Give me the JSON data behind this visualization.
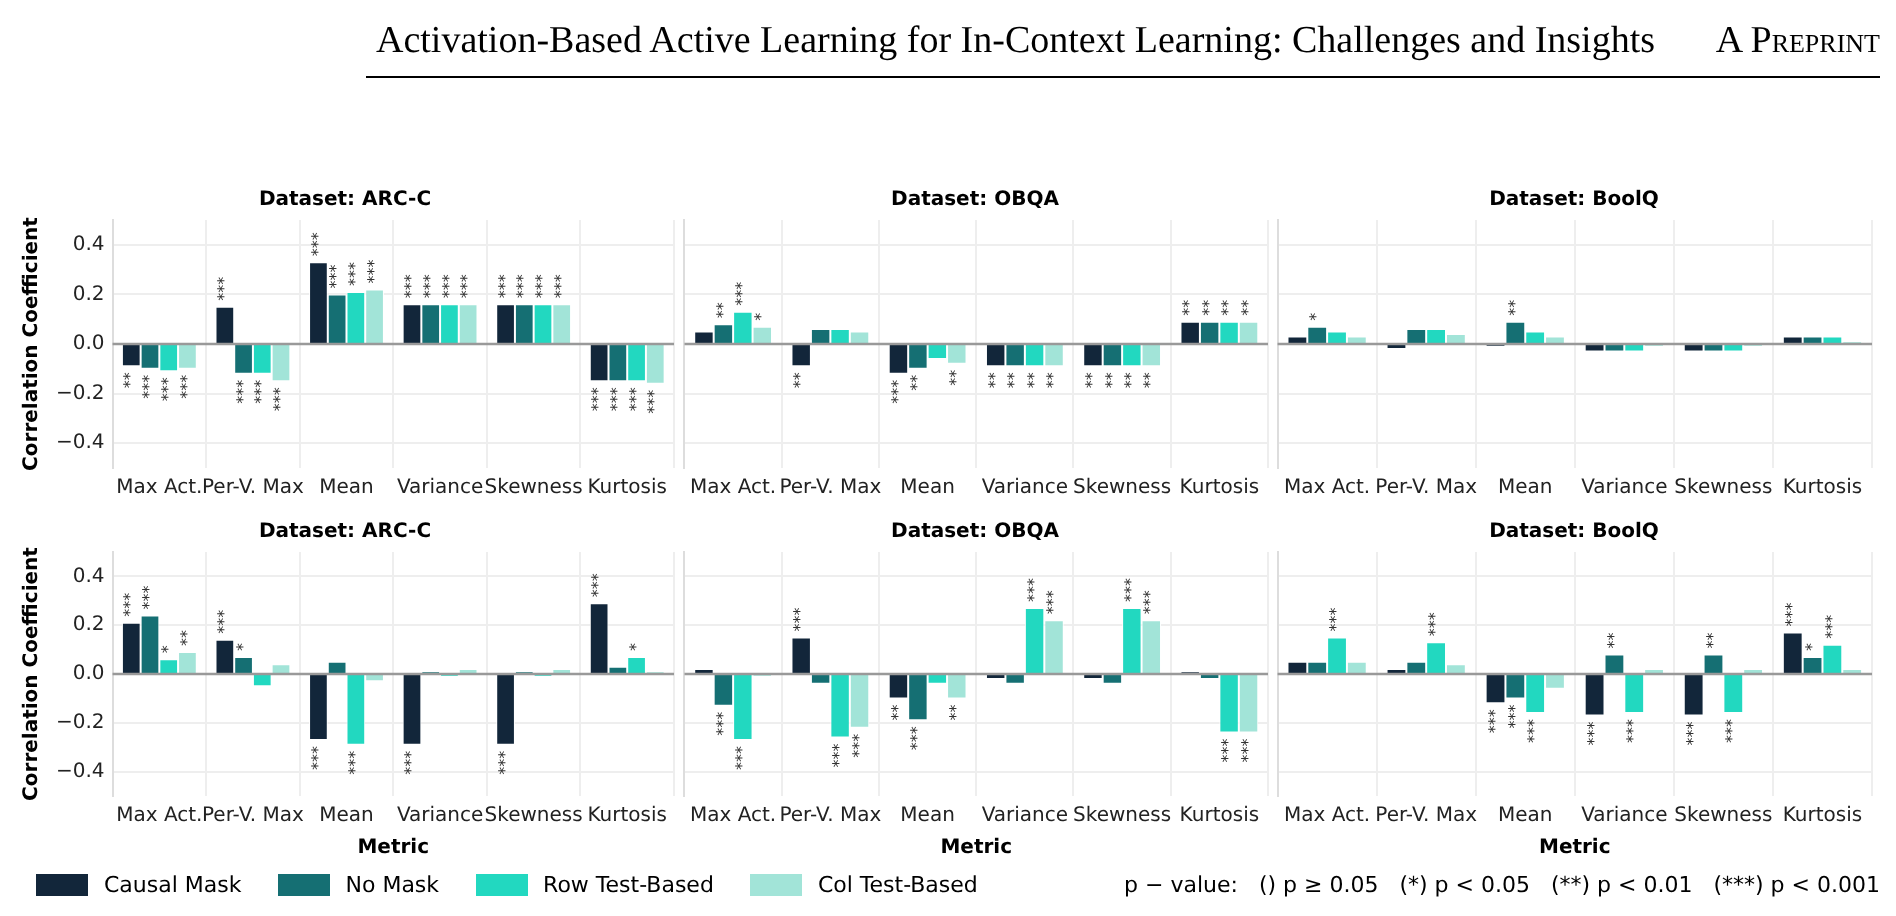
{
  "chart_data": [
    {
      "type": "bar",
      "title": "Dataset: ARC-C",
      "ylabel": "Correlation Coefficient",
      "categories": [
        "Max Act.",
        "Per-V. Max",
        "Mean",
        "Variance",
        "Skewness",
        "Kurtosis"
      ],
      "ylim": [
        -0.5,
        0.5
      ],
      "yticks": [
        -0.4,
        -0.2,
        {
          "value": 0,
          "label": "0.0"
        },
        0.2,
        0.4
      ],
      "grid": true,
      "legend": "bottom",
      "tick_labels": "xy",
      "ref_lines": [
        {
          "axis": "y",
          "value": 0,
          "color": "#999999"
        }
      ],
      "annotations": [
        "Activation-Based Active Learning for In-Context Learning: Challenges and Insights",
        "A Preprint"
      ],
      "series": [
        {
          "name": "Causal Mask",
          "color": "#12263a",
          "values": [
            -0.09,
            0.15,
            0.33,
            0.16,
            0.16,
            -0.15
          ],
          "value_labels": [
            "**",
            "***",
            "***",
            "***",
            "***",
            "***"
          ]
        },
        {
          "name": "No Mask",
          "color": "#156f73",
          "values": [
            -0.1,
            -0.12,
            0.2,
            0.16,
            0.16,
            -0.15
          ],
          "value_labels": [
            "***",
            "***",
            "***",
            "***",
            "***",
            "***"
          ]
        },
        {
          "name": "Row Test-Based",
          "color": "#22d8c0",
          "values": [
            -0.11,
            -0.12,
            0.21,
            0.16,
            0.16,
            -0.15
          ],
          "value_labels": [
            "***",
            "***",
            "***",
            "***",
            "***",
            "***"
          ]
        },
        {
          "name": "Col Test-Based",
          "color": "#a2e4d8",
          "values": [
            -0.1,
            -0.15,
            0.22,
            0.16,
            0.16,
            -0.16
          ],
          "value_labels": [
            "***",
            "***",
            "***",
            "***",
            "***",
            "***"
          ]
        }
      ]
    },
    {
      "type": "bar",
      "title": "Dataset: OBQA",
      "categories": [
        "Max Act.",
        "Per-V. Max",
        "Mean",
        "Variance",
        "Skewness",
        "Kurtosis"
      ],
      "ylim": [
        -0.5,
        0.5
      ],
      "yticks": [
        -0.4,
        -0.2,
        0,
        0.2,
        0.4
      ],
      "grid": true,
      "tick_labels": "x",
      "ref_lines": [
        {
          "axis": "y",
          "value": 0,
          "color": "#999999"
        }
      ],
      "series": [
        {
          "color": "#12263a",
          "values": [
            0.05,
            -0.09,
            -0.12,
            -0.09,
            -0.09,
            0.09
          ],
          "value_labels": [
            null,
            "**",
            "***",
            "**",
            "**",
            "**"
          ]
        },
        {
          "color": "#156f73",
          "values": [
            0.08,
            0.06,
            -0.1,
            -0.09,
            -0.09,
            0.09
          ],
          "value_labels": [
            "**",
            null,
            "**",
            "**",
            "**",
            "**"
          ]
        },
        {
          "color": "#22d8c0",
          "values": [
            0.13,
            0.06,
            -0.06,
            -0.09,
            -0.09,
            0.09
          ],
          "value_labels": [
            "***",
            null,
            null,
            "**",
            "**",
            "**"
          ]
        },
        {
          "color": "#a2e4d8",
          "values": [
            0.07,
            0.05,
            -0.08,
            -0.09,
            -0.09,
            0.09
          ],
          "value_labels": [
            "*",
            null,
            "**",
            "**",
            "**",
            "**"
          ]
        }
      ]
    },
    {
      "type": "bar",
      "title": "Dataset: BoolQ",
      "categories": [
        "Max Act.",
        "Per-V. Max",
        "Mean",
        "Variance",
        "Skewness",
        "Kurtosis"
      ],
      "ylim": [
        -0.5,
        0.5
      ],
      "yticks": [
        -0.4,
        -0.2,
        0,
        0.2,
        0.4
      ],
      "grid": true,
      "tick_labels": "x",
      "ref_lines": [
        {
          "axis": "y",
          "value": 0,
          "color": "#999999"
        }
      ],
      "series": [
        {
          "color": "#12263a",
          "values": [
            0.03,
            -0.02,
            -0.01,
            -0.03,
            -0.03,
            0.03
          ],
          "value_labels": [
            null,
            null,
            null,
            null,
            null,
            null
          ]
        },
        {
          "color": "#156f73",
          "values": [
            0.07,
            0.06,
            0.09,
            -0.03,
            -0.03,
            0.03
          ],
          "value_labels": [
            "*",
            null,
            "**",
            null,
            null,
            null
          ]
        },
        {
          "color": "#22d8c0",
          "values": [
            0.05,
            0.06,
            0.05,
            -0.03,
            -0.03,
            0.03
          ],
          "value_labels": [
            null,
            null,
            null,
            null,
            null,
            null
          ]
        },
        {
          "color": "#a2e4d8",
          "values": [
            0.03,
            0.04,
            0.03,
            -0.01,
            -0.01,
            0.01
          ],
          "value_labels": [
            null,
            null,
            null,
            null,
            null,
            null
          ]
        }
      ]
    },
    {
      "type": "bar",
      "title": "Dataset: ARC-C",
      "ylabel": "Correlation Coefficient",
      "xlabel": "Metric",
      "categories": [
        "Max Act.",
        "Per-V. Max",
        "Mean",
        "Variance",
        "Skewness",
        "Kurtosis"
      ],
      "ylim": [
        -0.5,
        0.5
      ],
      "yticks": [
        -0.4,
        -0.2,
        {
          "value": 0,
          "label": "0.0"
        },
        0.2,
        0.4
      ],
      "grid": true,
      "tick_labels": "xy",
      "ref_lines": [
        {
          "axis": "y",
          "value": 0,
          "color": "#999999"
        }
      ],
      "series": [
        {
          "color": "#12263a",
          "values": [
            0.21,
            0.14,
            -0.27,
            -0.29,
            -0.29,
            0.29
          ],
          "value_labels": [
            "***",
            "***",
            "***",
            "***",
            "***",
            "***"
          ]
        },
        {
          "color": "#156f73",
          "values": [
            0.24,
            0.07,
            0.05,
            0.01,
            0.01,
            0.03
          ],
          "value_labels": [
            "***",
            "*",
            null,
            null,
            null,
            null
          ]
        },
        {
          "color": "#22d8c0",
          "values": [
            0.06,
            -0.05,
            -0.29,
            -0.01,
            -0.01,
            0.07
          ],
          "value_labels": [
            "*",
            null,
            "***",
            null,
            null,
            "*"
          ]
        },
        {
          "color": "#a2e4d8",
          "values": [
            0.09,
            0.04,
            -0.03,
            0.02,
            0.02,
            0.01
          ],
          "value_labels": [
            "**",
            null,
            null,
            null,
            null,
            null
          ]
        }
      ]
    },
    {
      "type": "bar",
      "title": "Dataset: OBQA",
      "xlabel": "Metric",
      "categories": [
        "Max Act.",
        "Per-V. Max",
        "Mean",
        "Variance",
        "Skewness",
        "Kurtosis"
      ],
      "ylim": [
        -0.5,
        0.5
      ],
      "yticks": [
        -0.4,
        -0.2,
        0,
        0.2,
        0.4
      ],
      "grid": true,
      "tick_labels": "x",
      "ref_lines": [
        {
          "axis": "y",
          "value": 0,
          "color": "#999999"
        }
      ],
      "series": [
        {
          "color": "#12263a",
          "values": [
            0.02,
            0.15,
            -0.1,
            -0.02,
            -0.02,
            0.01
          ],
          "value_labels": [
            null,
            "***",
            "**",
            null,
            null,
            null
          ]
        },
        {
          "color": "#156f73",
          "values": [
            -0.13,
            -0.04,
            -0.19,
            -0.04,
            -0.04,
            -0.02
          ],
          "value_labels": [
            "***",
            null,
            "***",
            null,
            null,
            null
          ]
        },
        {
          "color": "#22d8c0",
          "values": [
            -0.27,
            -0.26,
            -0.04,
            0.27,
            0.27,
            -0.24
          ],
          "value_labels": [
            "***",
            "***",
            null,
            "***",
            "***",
            "***"
          ]
        },
        {
          "color": "#a2e4d8",
          "values": [
            -0.01,
            -0.22,
            -0.1,
            0.22,
            0.22,
            -0.24
          ],
          "value_labels": [
            null,
            "***",
            "**",
            "***",
            "***",
            "***"
          ]
        }
      ]
    },
    {
      "type": "bar",
      "title": "Dataset: BoolQ",
      "xlabel": "Metric",
      "categories": [
        "Max Act.",
        "Per-V. Max",
        "Mean",
        "Variance",
        "Skewness",
        "Kurtosis"
      ],
      "ylim": [
        -0.5,
        0.5
      ],
      "yticks": [
        -0.4,
        -0.2,
        0,
        0.2,
        0.4
      ],
      "grid": true,
      "tick_labels": "x",
      "ref_lines": [
        {
          "axis": "y",
          "value": 0,
          "color": "#999999"
        }
      ],
      "annotations": [
        "p − value:   () p ≥ 0.05   (*) p < 0.05   (**) p < 0.01   (***) p < 0.001"
      ],
      "series": [
        {
          "color": "#12263a",
          "values": [
            0.05,
            0.02,
            -0.12,
            -0.17,
            -0.17,
            0.17
          ],
          "value_labels": [
            null,
            null,
            "***",
            "***",
            "***",
            "***"
          ]
        },
        {
          "color": "#156f73",
          "values": [
            0.05,
            0.05,
            -0.1,
            0.08,
            0.08,
            0.07
          ],
          "value_labels": [
            null,
            null,
            "***",
            "**",
            "**",
            "*"
          ]
        },
        {
          "color": "#22d8c0",
          "values": [
            0.15,
            0.13,
            -0.16,
            -0.16,
            -0.16,
            0.12
          ],
          "value_labels": [
            "***",
            "***",
            "***",
            "***",
            "***",
            "***"
          ]
        },
        {
          "color": "#a2e4d8",
          "values": [
            0.05,
            0.04,
            -0.06,
            0.02,
            0.02,
            0.02
          ],
          "value_labels": [
            null,
            null,
            null,
            null,
            null,
            null
          ]
        }
      ]
    }
  ]
}
